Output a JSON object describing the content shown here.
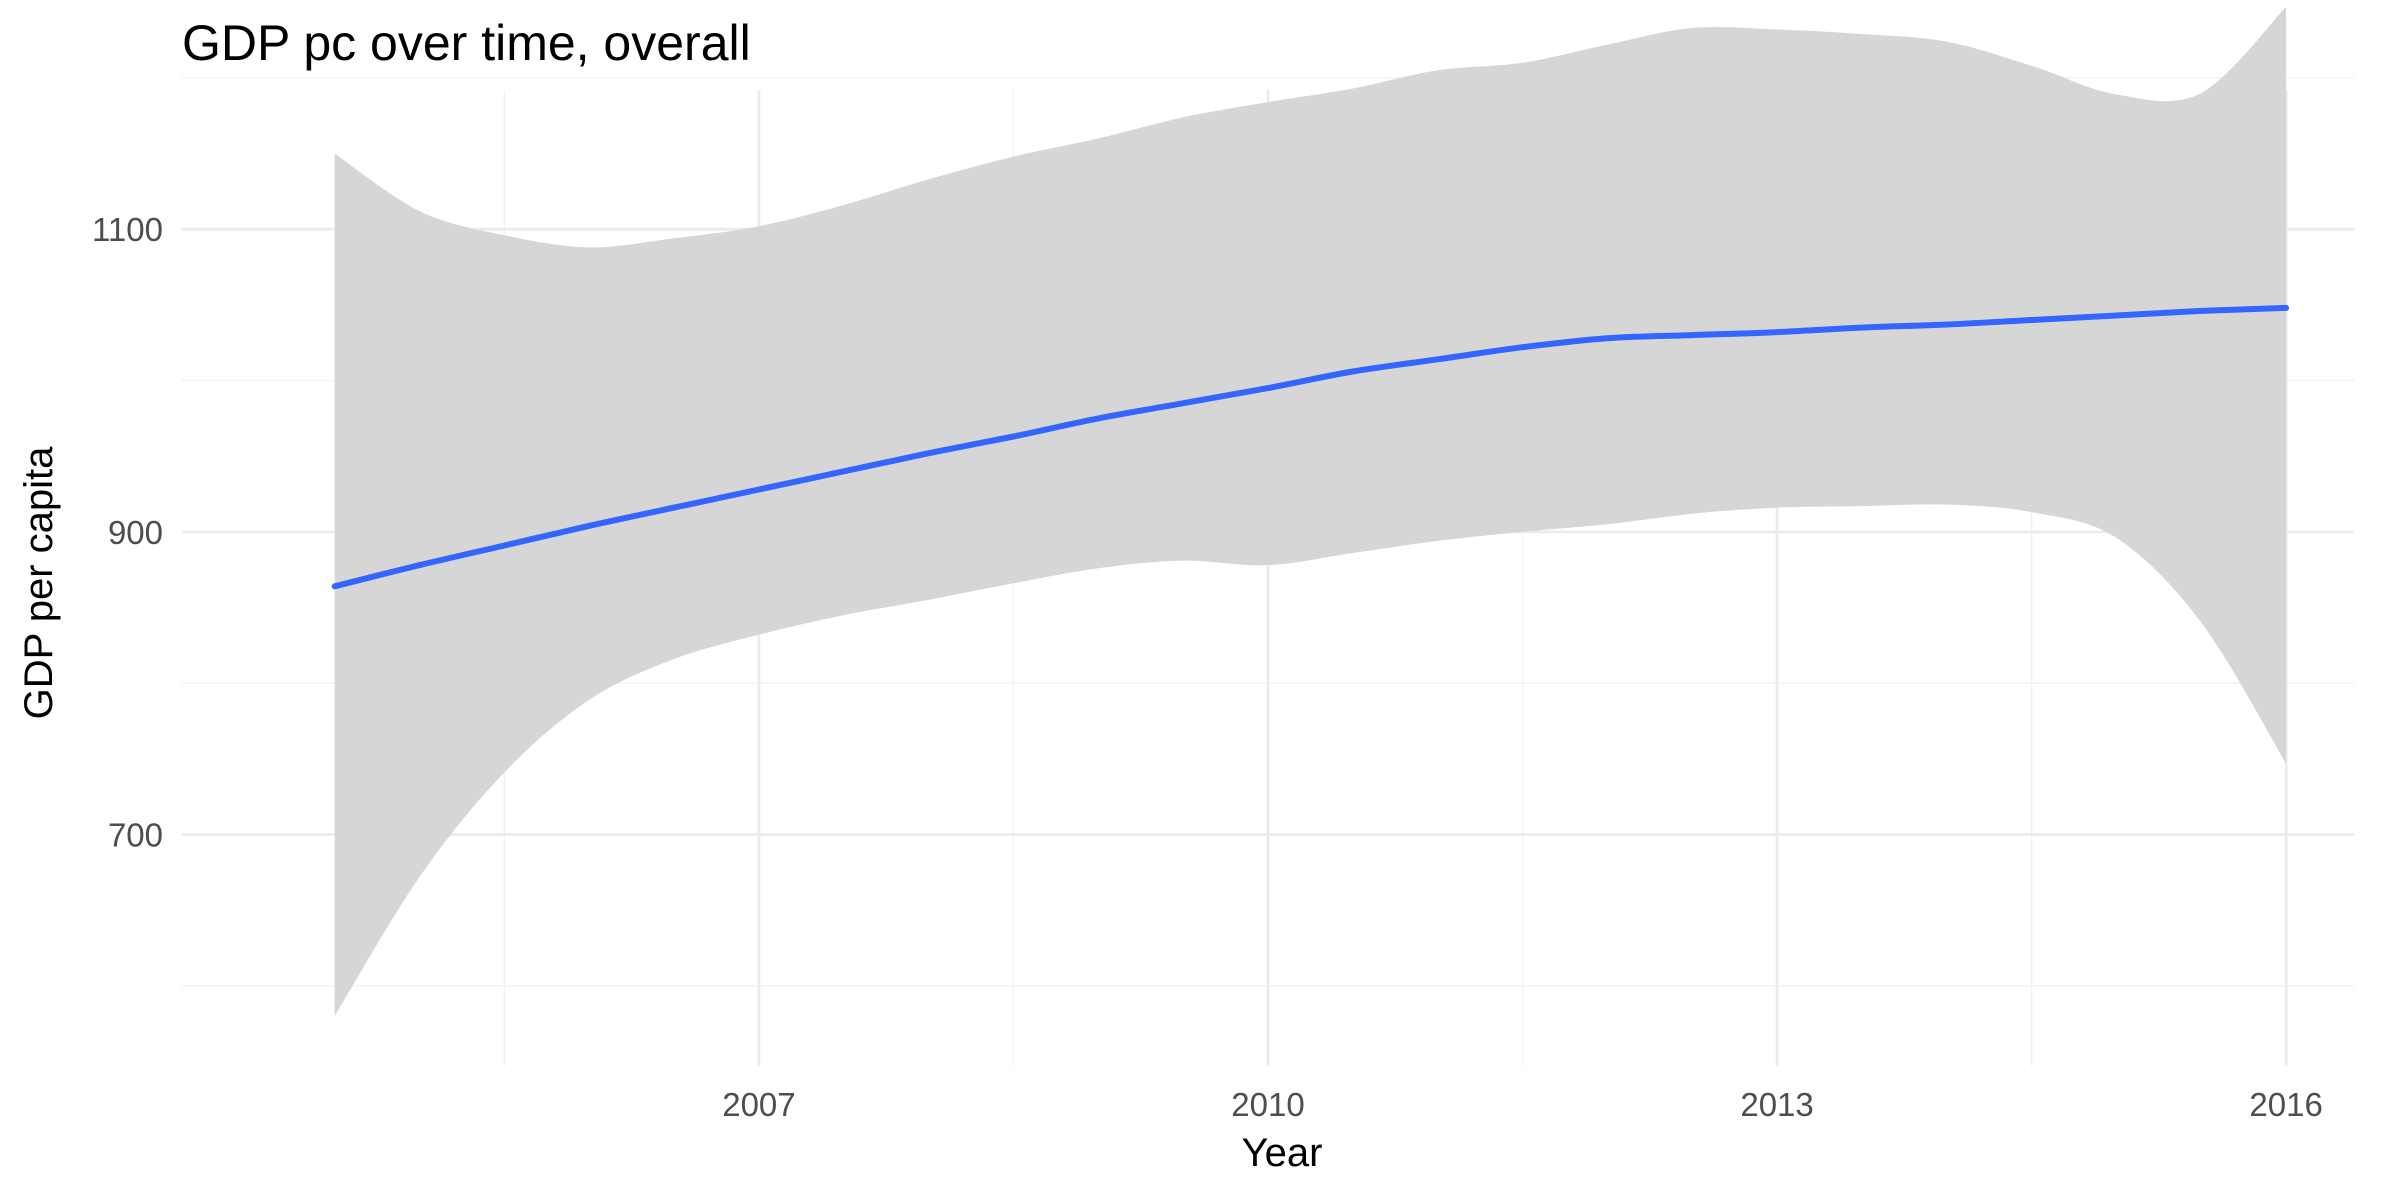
{
  "chart_data": {
    "type": "line",
    "title": "GDP pc over time, overall",
    "xlabel": "Year",
    "ylabel": "GDP per capita",
    "xlim": [
      2003.6,
      2016.4
    ],
    "ylim": [
      547,
      1192
    ],
    "x_ticks": [
      2007,
      2010,
      2013,
      2016
    ],
    "x_minor_ticks": [
      2005.5,
      2008.5,
      2011.5,
      2014.5
    ],
    "y_ticks": [
      700,
      900,
      1100
    ],
    "y_minor_ticks": [
      600,
      800,
      1000,
      1200
    ],
    "grid": true,
    "legend": "none",
    "colors": {
      "line": "#3366ff",
      "band": "#d6d6d6",
      "grid": "#ebebeb"
    },
    "series": [
      {
        "smooth": true,
        "x": [
          2004.5,
          2005,
          2005.5,
          2006,
          2006.5,
          2007,
          2007.5,
          2008,
          2008.5,
          2009,
          2009.5,
          2010,
          2010.5,
          2011,
          2011.5,
          2012,
          2012.5,
          2013,
          2013.5,
          2014,
          2014.5,
          2015,
          2015.5,
          2016
        ],
        "y": [
          864,
          878,
          891,
          904,
          916,
          928,
          940,
          952,
          963,
          975,
          985,
          995,
          1006,
          1014,
          1022,
          1028,
          1030,
          1032,
          1035,
          1037,
          1040,
          1043,
          1046,
          1048
        ],
        "lower": [
          580,
          672,
          741,
          789,
          816,
          832,
          845,
          855,
          866,
          876,
          881,
          878,
          886,
          894,
          900,
          905,
          912,
          916,
          917,
          918,
          913,
          896,
          840,
          747
        ],
        "upper": [
          1150,
          1112,
          1096,
          1088,
          1094,
          1102,
          1116,
          1133,
          1148,
          1160,
          1174,
          1184,
          1193,
          1205,
          1210,
          1222,
          1233,
          1232,
          1229,
          1224,
          1208,
          1189,
          1190,
          1247
        ]
      }
    ]
  }
}
